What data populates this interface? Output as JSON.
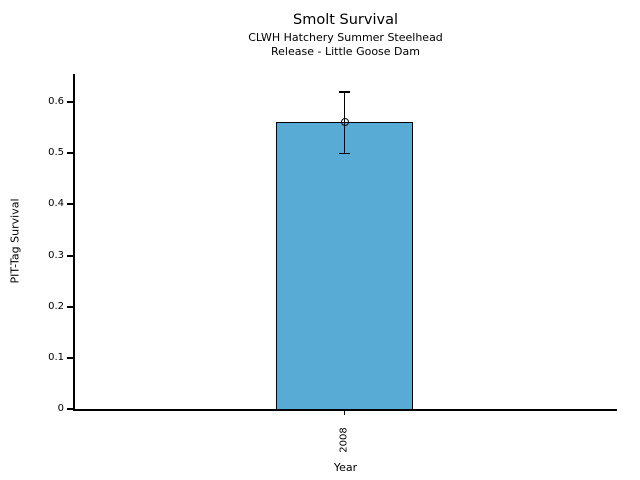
{
  "title": "Smolt Survival",
  "subtitle1": "CLWH Hatchery Summer Steelhead",
  "subtitle2": "Release - Little Goose Dam",
  "chart_data": {
    "type": "bar",
    "title": "Smolt Survival",
    "subtitle": [
      "CLWH Hatchery Summer Steelhead",
      "Release - Little Goose Dam"
    ],
    "categories": [
      "2008"
    ],
    "values": [
      0.56
    ],
    "error_bars": [
      {
        "lower": 0.5,
        "upper": 0.62
      }
    ],
    "xlabel": "Year",
    "ylabel": "PIT-Tag Survival",
    "ylim": [
      0,
      0.65
    ],
    "yticks": [
      0,
      0.1,
      0.2,
      0.3,
      0.4,
      0.5,
      0.6
    ],
    "ytick_labels": [
      "0",
      "0.1",
      "0.2",
      "0.3",
      "0.4",
      "0.5",
      "0.6"
    ],
    "xtick_label_rotation": 90,
    "grid": false,
    "legend": "none",
    "bar_color": "#58ABD4",
    "bar_edge_color": "#000000",
    "error_bar_color": "#000000",
    "marker": "open-circle"
  }
}
